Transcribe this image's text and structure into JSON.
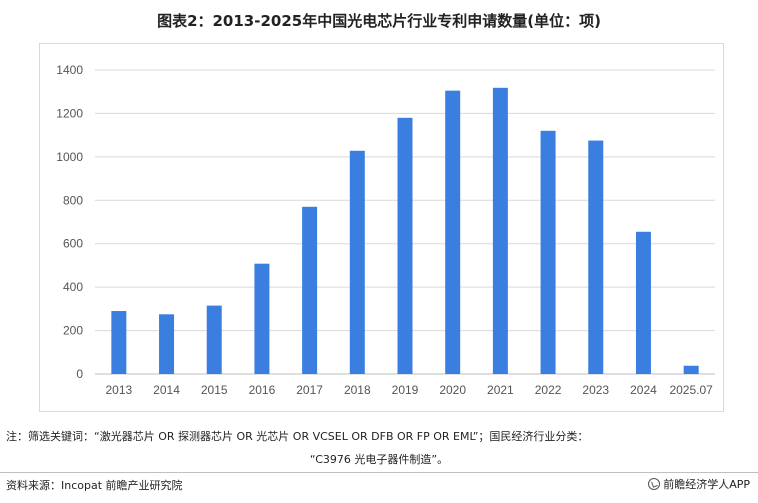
{
  "title": "图表2：2013-2025年中国光电芯片行业专利申请数量(单位：项)",
  "note_line1": "注：筛选关键词：“激光器芯片 OR 探测器芯片 OR 光芯片 OR VCSEL OR DFB OR FP OR EML”；国民经济行业分类：",
  "note_line2": "“C3976 光电子器件制造”。",
  "source": "资料来源：Incopat 前瞻产业研究院",
  "brand": "前瞻经济学人APP",
  "colors": {
    "bar": "#3a7fe0",
    "grid": "#d9d9d9",
    "axis": "#bfbfbf"
  },
  "chart_data": {
    "type": "bar",
    "categories": [
      "2013",
      "2014",
      "2015",
      "2016",
      "2017",
      "2018",
      "2019",
      "2020",
      "2021",
      "2022",
      "2023",
      "2024",
      "2025.07"
    ],
    "values": [
      290,
      275,
      315,
      508,
      770,
      1028,
      1180,
      1305,
      1318,
      1120,
      1075,
      655,
      38
    ],
    "title": "",
    "xlabel": "",
    "ylabel": "",
    "ylim": [
      0,
      1400
    ],
    "yticks": [
      0,
      200,
      400,
      600,
      800,
      1000,
      1200,
      1400
    ],
    "grid": true,
    "legend": "none"
  }
}
